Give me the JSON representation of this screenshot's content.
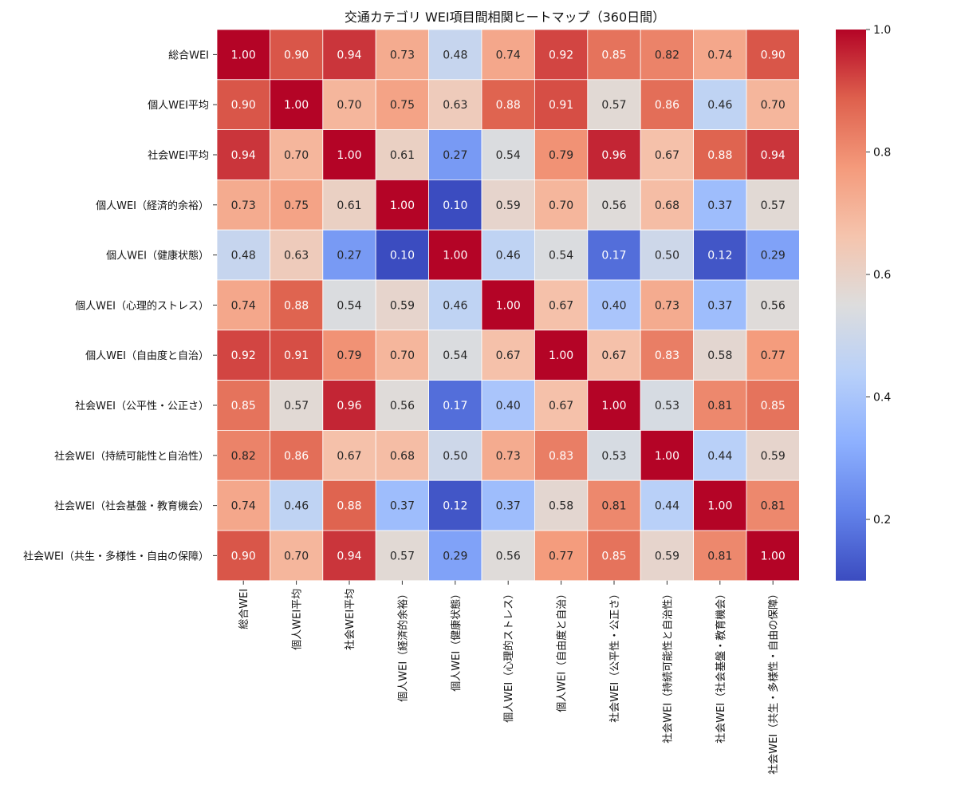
{
  "chart_data": {
    "type": "heatmap",
    "title": "交通カテゴリ WEI項目間相関ヒートマップ（360日間）",
    "labels": [
      "総合WEI",
      "個人WEI平均",
      "社会WEI平均",
      "個人WEI（経済的余裕）",
      "個人WEI（健康状態）",
      "個人WEI（心理的ストレス）",
      "個人WEI（自由度と自治）",
      "社会WEI（公平性・公正さ）",
      "社会WEI（持続可能性と自治性）",
      "社会WEI（社会基盤・教育機会）",
      "社会WEI（共生・多様性・自由の保障）"
    ],
    "matrix": [
      [
        1.0,
        0.9,
        0.94,
        0.73,
        0.48,
        0.74,
        0.92,
        0.85,
        0.82,
        0.74,
        0.9
      ],
      [
        0.9,
        1.0,
        0.7,
        0.75,
        0.63,
        0.88,
        0.91,
        0.57,
        0.86,
        0.46,
        0.7
      ],
      [
        0.94,
        0.7,
        1.0,
        0.61,
        0.27,
        0.54,
        0.79,
        0.96,
        0.67,
        0.88,
        0.94
      ],
      [
        0.73,
        0.75,
        0.61,
        1.0,
        0.1,
        0.59,
        0.7,
        0.56,
        0.68,
        0.37,
        0.57
      ],
      [
        0.48,
        0.63,
        0.27,
        0.1,
        1.0,
        0.46,
        0.54,
        0.17,
        0.5,
        0.12,
        0.29
      ],
      [
        0.74,
        0.88,
        0.54,
        0.59,
        0.46,
        1.0,
        0.67,
        0.4,
        0.73,
        0.37,
        0.56
      ],
      [
        0.92,
        0.91,
        0.79,
        0.7,
        0.54,
        0.67,
        1.0,
        0.67,
        0.83,
        0.58,
        0.77
      ],
      [
        0.85,
        0.57,
        0.96,
        0.56,
        0.17,
        0.4,
        0.67,
        1.0,
        0.53,
        0.81,
        0.85
      ],
      [
        0.82,
        0.86,
        0.67,
        0.68,
        0.5,
        0.73,
        0.83,
        0.53,
        1.0,
        0.44,
        0.59
      ],
      [
        0.74,
        0.46,
        0.88,
        0.37,
        0.12,
        0.37,
        0.58,
        0.81,
        0.44,
        1.0,
        0.81
      ],
      [
        0.9,
        0.7,
        0.94,
        0.57,
        0.29,
        0.56,
        0.77,
        0.85,
        0.59,
        0.81,
        1.0
      ]
    ],
    "value_range": [
      0.1,
      1.0
    ],
    "colormap": "coolwarm",
    "colorbar_ticks": [
      0.2,
      0.4,
      0.6,
      0.8,
      1.0
    ],
    "colorbar_tick_labels": [
      "0.2",
      "0.4",
      "0.6",
      "0.8",
      "1.0"
    ],
    "annotations": true,
    "annotation_format": "0.00",
    "grid_line_color": "#ffffff"
  }
}
